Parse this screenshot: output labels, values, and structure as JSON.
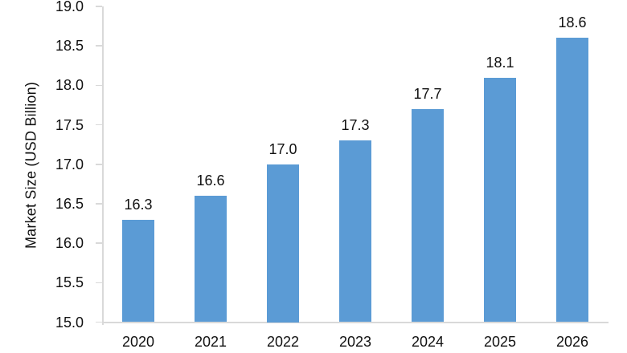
{
  "chart_data": {
    "type": "bar",
    "title": "",
    "xlabel": "",
    "ylabel": "Market Size (USD Billion)",
    "categories": [
      "2020",
      "2021",
      "2022",
      "2023",
      "2024",
      "2025",
      "2026"
    ],
    "values": [
      16.3,
      16.6,
      17.0,
      17.3,
      17.7,
      18.1,
      18.6
    ],
    "data_labels": [
      "16.3",
      "16.6",
      "17.0",
      "17.3",
      "17.7",
      "18.1",
      "18.6"
    ],
    "ylim": [
      15.0,
      19.0
    ],
    "ytick_step": 0.5,
    "ytick_labels": [
      "15.0",
      "15.5",
      "16.0",
      "16.5",
      "17.0",
      "17.5",
      "18.0",
      "18.5",
      "19.0"
    ],
    "grid": false,
    "legend": "none",
    "colors": {
      "bar_fill": "#5B9BD5",
      "axis_line": "#D9D9D9",
      "text": "#111111",
      "background": "#FFFFFF"
    }
  }
}
